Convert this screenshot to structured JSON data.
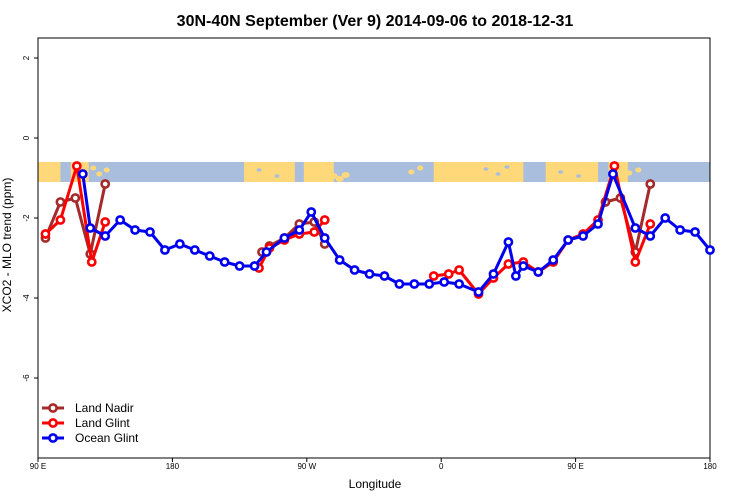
{
  "chart_data": {
    "type": "line",
    "title": "30N-40N September (Ver 9)   2014-09-06 to 2018-12-31",
    "xlabel": "Longitude",
    "ylabel": "XCO2 - MLO trend (ppm)",
    "xlim": [
      90,
      540
    ],
    "ylim": [
      -8,
      2.5
    ],
    "x_ticks": [
      {
        "value": 90,
        "label": "90 E"
      },
      {
        "value": 180,
        "label": "180"
      },
      {
        "value": 270,
        "label": "90 W"
      },
      {
        "value": 360,
        "label": "0"
      },
      {
        "value": 450,
        "label": "90 E"
      },
      {
        "value": 540,
        "label": "180"
      }
    ],
    "y_ticks": [
      {
        "value": 2,
        "label": "2"
      },
      {
        "value": 0,
        "label": "0"
      },
      {
        "value": -2,
        "label": "-2"
      },
      {
        "value": -4,
        "label": "-4"
      },
      {
        "value": -6,
        "label": "-6"
      }
    ],
    "map_strip": {
      "y_top": -0.6,
      "y_bottom": -1.1,
      "ocean_color": "#a9bedc",
      "land_color": "#ffd87a"
    },
    "legend_position": "bottom-left",
    "series": [
      {
        "name": "Land Nadir",
        "color": "#a52a2a",
        "points": [
          [
            95,
            -2.5
          ],
          [
            105,
            -1.6
          ],
          [
            115,
            -1.5
          ],
          [
            125,
            -2.9
          ],
          [
            135,
            -1.15
          ],
          [
            240,
            -2.85
          ],
          [
            245,
            -2.7
          ],
          [
            255,
            -2.5
          ],
          [
            265,
            -2.15
          ],
          [
            275,
            -2.1
          ],
          [
            282,
            -2.65
          ],
          [
            470,
            -1.6
          ],
          [
            480,
            -1.5
          ],
          [
            490,
            -2.85
          ],
          [
            500,
            -1.15
          ]
        ]
      },
      {
        "name": "Land Glint",
        "color": "#ff0000",
        "points": [
          [
            95,
            -2.4
          ],
          [
            105,
            -2.05
          ],
          [
            116,
            -0.7
          ],
          [
            126,
            -3.1
          ],
          [
            135,
            -2.1
          ],
          [
            238,
            -3.25
          ],
          [
            245,
            -2.75
          ],
          [
            255,
            -2.55
          ],
          [
            265,
            -2.4
          ],
          [
            275,
            -2.35
          ],
          [
            282,
            -2.05
          ],
          [
            355,
            -3.45
          ],
          [
            365,
            -3.4
          ],
          [
            372,
            -3.3
          ],
          [
            385,
            -3.9
          ],
          [
            395,
            -3.5
          ],
          [
            405,
            -3.15
          ],
          [
            415,
            -3.1
          ],
          [
            425,
            -3.35
          ],
          [
            435,
            -3.1
          ],
          [
            445,
            -2.55
          ],
          [
            455,
            -2.4
          ],
          [
            465,
            -2.05
          ],
          [
            476,
            -0.7
          ],
          [
            490,
            -3.1
          ],
          [
            500,
            -2.15
          ]
        ]
      },
      {
        "name": "Ocean Glint",
        "color": "#0000ee",
        "points": [
          [
            120,
            -0.9
          ],
          [
            125,
            -2.25
          ],
          [
            135,
            -2.45
          ],
          [
            145,
            -2.05
          ],
          [
            155,
            -2.3
          ],
          [
            165,
            -2.35
          ],
          [
            175,
            -2.8
          ],
          [
            185,
            -2.65
          ],
          [
            195,
            -2.8
          ],
          [
            205,
            -2.95
          ],
          [
            215,
            -3.1
          ],
          [
            225,
            -3.2
          ],
          [
            235,
            -3.2
          ],
          [
            243,
            -2.85
          ],
          [
            255,
            -2.5
          ],
          [
            265,
            -2.3
          ],
          [
            273,
            -1.85
          ],
          [
            282,
            -2.5
          ],
          [
            292,
            -3.05
          ],
          [
            302,
            -3.3
          ],
          [
            312,
            -3.4
          ],
          [
            322,
            -3.45
          ],
          [
            332,
            -3.65
          ],
          [
            342,
            -3.65
          ],
          [
            352,
            -3.65
          ],
          [
            362,
            -3.6
          ],
          [
            372,
            -3.65
          ],
          [
            385,
            -3.85
          ],
          [
            395,
            -3.4
          ],
          [
            405,
            -2.6
          ],
          [
            410,
            -3.45
          ],
          [
            415,
            -3.2
          ],
          [
            425,
            -3.35
          ],
          [
            435,
            -3.05
          ],
          [
            445,
            -2.55
          ],
          [
            455,
            -2.45
          ],
          [
            465,
            -2.15
          ],
          [
            475,
            -0.9
          ],
          [
            490,
            -2.25
          ],
          [
            500,
            -2.45
          ],
          [
            510,
            -2.0
          ],
          [
            520,
            -2.3
          ],
          [
            530,
            -2.35
          ],
          [
            540,
            -2.8
          ]
        ]
      }
    ]
  }
}
